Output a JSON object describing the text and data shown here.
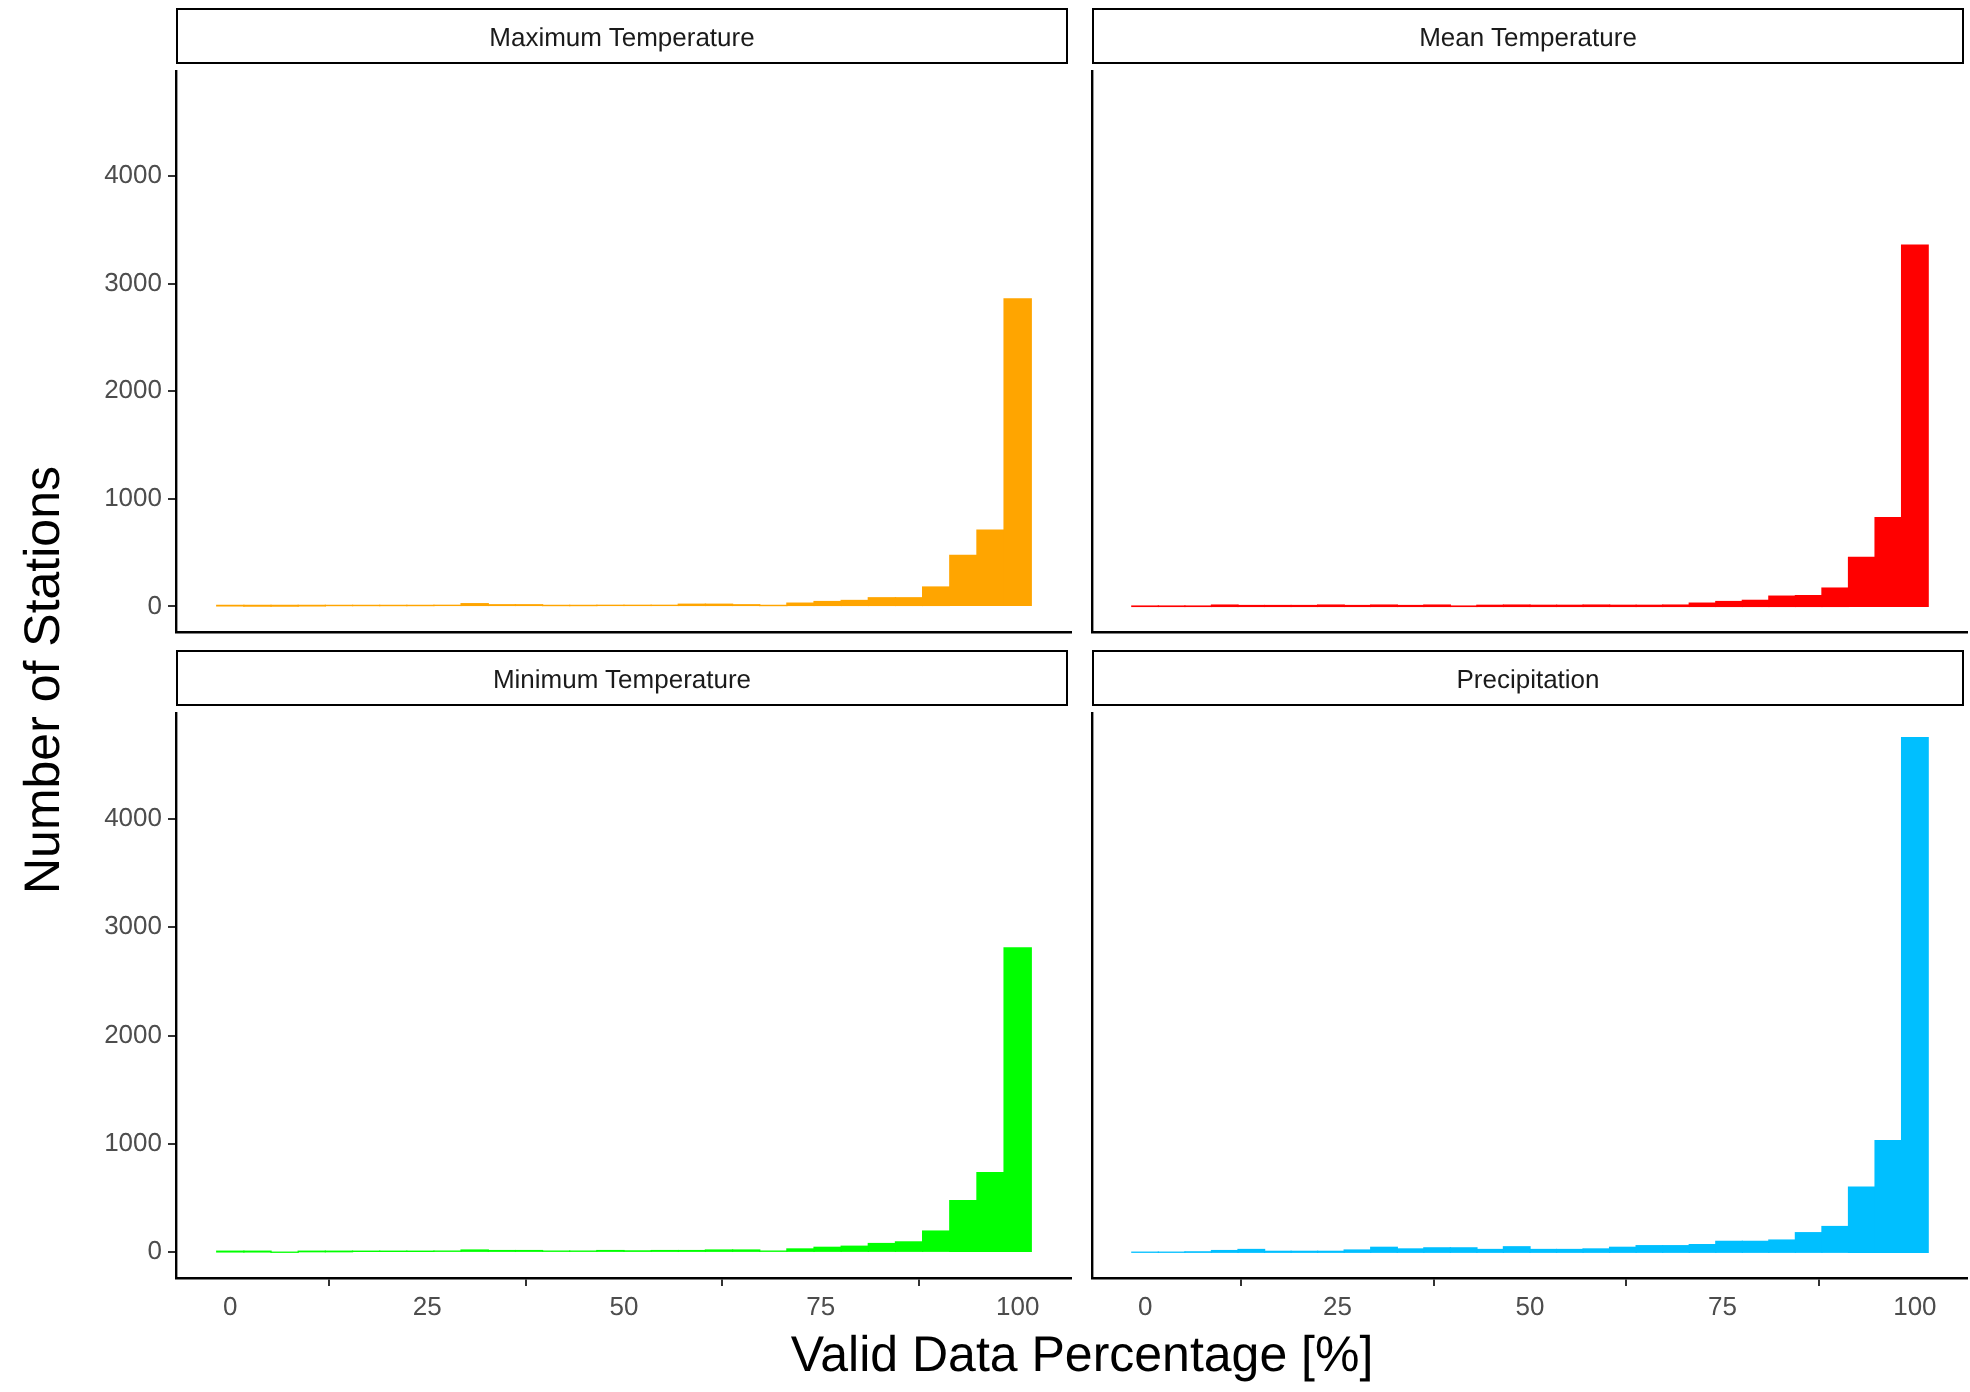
{
  "chart_data": [
    {
      "type": "histogram",
      "title": "Maximum Temperature",
      "ylabel": "Number of Stations",
      "color": "#ffa500",
      "bins": [
        -1.72,
        1.72,
        5.17,
        8.62,
        12.07,
        15.52,
        18.97,
        22.41,
        25.86,
        29.31,
        32.76,
        36.21,
        39.66,
        43.1,
        46.55,
        50.0,
        53.45,
        56.9,
        60.34,
        63.79,
        67.24,
        70.69,
        74.14,
        77.59,
        81.03,
        84.48,
        87.93,
        91.38,
        94.83,
        98.28,
        101.72
      ],
      "values": [
        5,
        3,
        3,
        5,
        8,
        8,
        8,
        8,
        10,
        25,
        15,
        15,
        8,
        8,
        10,
        10,
        10,
        20,
        20,
        15,
        8,
        30,
        45,
        55,
        80,
        80,
        180,
        475,
        710,
        2860
      ],
      "xlim": [
        -6.9,
        106.9
      ],
      "xticks": [
        0,
        25,
        50,
        75,
        100
      ],
      "ylim": [
        -238,
        4988
      ],
      "yticks": [
        0,
        1000,
        2000,
        3000,
        4000
      ],
      "tick_labels": "y"
    },
    {
      "type": "histogram",
      "title": "Mean Temperature",
      "color": "#ff0000",
      "bins": [
        -1.72,
        1.72,
        5.17,
        8.62,
        12.07,
        15.52,
        18.97,
        22.41,
        25.86,
        29.31,
        32.76,
        36.21,
        39.66,
        43.1,
        46.55,
        50.0,
        53.45,
        56.9,
        60.34,
        63.79,
        67.24,
        70.69,
        74.14,
        77.59,
        81.03,
        84.48,
        87.93,
        91.38,
        94.83,
        98.28,
        101.72
      ],
      "values": [
        3,
        3,
        3,
        12,
        8,
        8,
        8,
        12,
        8,
        12,
        8,
        12,
        3,
        10,
        12,
        10,
        10,
        12,
        10,
        10,
        12,
        30,
        45,
        56,
        95,
        100,
        170,
        456,
        825,
        3360
      ],
      "xlim": [
        -6.9,
        106.9
      ],
      "xticks": [
        0,
        25,
        50,
        75,
        100
      ],
      "ylim": [
        -238,
        4988
      ],
      "yticks": [
        0,
        1000,
        2000,
        3000,
        4000
      ],
      "tick_labels": false
    },
    {
      "type": "histogram",
      "title": "Minimum Temperature",
      "xlabel": "Valid Data Percentage [%]",
      "color": "#00ff00",
      "bins": [
        -1.72,
        1.72,
        5.17,
        8.62,
        12.07,
        15.52,
        18.97,
        22.41,
        25.86,
        29.31,
        32.76,
        36.21,
        39.66,
        43.1,
        46.55,
        50.0,
        53.45,
        56.9,
        60.34,
        63.79,
        67.24,
        70.69,
        74.14,
        77.59,
        81.03,
        84.48,
        87.93,
        91.38,
        94.83,
        98.28,
        101.72
      ],
      "values": [
        3,
        3,
        0,
        5,
        5,
        8,
        8,
        8,
        10,
        20,
        15,
        15,
        10,
        10,
        15,
        12,
        15,
        15,
        20,
        20,
        10,
        30,
        45,
        55,
        80,
        95,
        195,
        475,
        735,
        2810
      ],
      "xlim": [
        -6.9,
        106.9
      ],
      "xticks": [
        0,
        25,
        50,
        75,
        100
      ],
      "ylim": [
        -238,
        4988
      ],
      "yticks": [
        0,
        1000,
        2000,
        3000,
        4000
      ]
    },
    {
      "type": "histogram",
      "title": "Precipitation",
      "color": "#00bfff",
      "bins": [
        -1.72,
        1.72,
        5.17,
        8.62,
        12.07,
        15.52,
        18.97,
        22.41,
        25.86,
        29.31,
        32.76,
        36.21,
        39.66,
        43.1,
        46.55,
        50.0,
        53.45,
        56.9,
        60.34,
        63.79,
        67.24,
        70.69,
        74.14,
        77.59,
        81.03,
        84.48,
        87.93,
        91.38,
        94.83,
        98.28,
        101.72
      ],
      "values": [
        0,
        0,
        3,
        15,
        25,
        8,
        8,
        8,
        20,
        45,
        30,
        40,
        40,
        25,
        50,
        25,
        25,
        30,
        45,
        60,
        60,
        70,
        100,
        100,
        112,
        180,
        237,
        600,
        1030,
        4750
      ],
      "xlim": [
        -6.9,
        106.9
      ],
      "xticks": [
        0,
        25,
        50,
        75,
        100
      ],
      "ylim": [
        -238,
        4988
      ],
      "yticks": [
        0,
        1000,
        2000,
        3000,
        4000
      ],
      "tick_labels": "x"
    }
  ]
}
